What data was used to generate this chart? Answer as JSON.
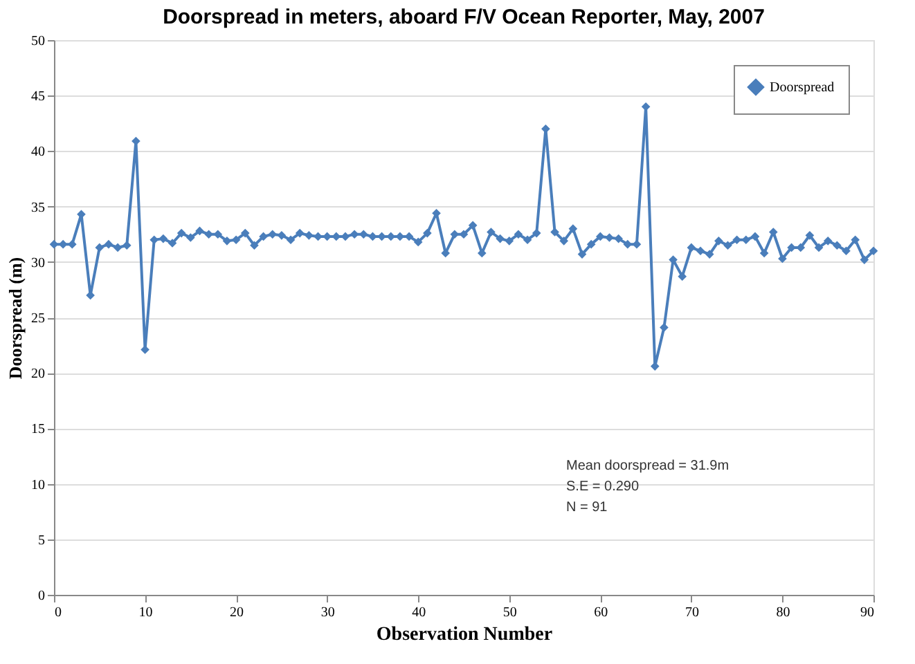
{
  "chart_data": {
    "type": "line",
    "title": "Doorspread in meters, aboard F/V Ocean Reporter, May, 2007",
    "xlabel": "Observation Number",
    "ylabel": "Doorspread (m)",
    "x": [
      0,
      1,
      2,
      3,
      4,
      5,
      6,
      7,
      8,
      9,
      10,
      11,
      12,
      13,
      14,
      15,
      16,
      17,
      18,
      19,
      20,
      21,
      22,
      23,
      24,
      25,
      26,
      27,
      28,
      29,
      30,
      31,
      32,
      33,
      34,
      35,
      36,
      37,
      38,
      39,
      40,
      41,
      42,
      43,
      44,
      45,
      46,
      47,
      48,
      49,
      50,
      51,
      52,
      53,
      54,
      55,
      56,
      57,
      58,
      59,
      60,
      61,
      62,
      63,
      64,
      65,
      66,
      67,
      68,
      69,
      70,
      71,
      72,
      73,
      74,
      75,
      76,
      77,
      78,
      79,
      80,
      81,
      82,
      83,
      84,
      85,
      86,
      87,
      88,
      89,
      90
    ],
    "series": [
      {
        "name": "Doorspread",
        "color": "#4a7ebb",
        "values": [
          31.6,
          31.6,
          31.6,
          34.3,
          27.0,
          31.3,
          31.6,
          31.3,
          31.5,
          40.9,
          22.1,
          32.0,
          32.1,
          31.7,
          32.6,
          32.2,
          32.8,
          32.5,
          32.5,
          31.9,
          32.0,
          32.6,
          31.5,
          32.3,
          32.5,
          32.4,
          32.0,
          32.6,
          32.4,
          32.3,
          32.3,
          32.3,
          32.3,
          32.5,
          32.5,
          32.3,
          32.3,
          32.3,
          32.3,
          32.3,
          31.8,
          32.6,
          34.4,
          30.8,
          32.5,
          32.5,
          33.3,
          30.8,
          32.7,
          32.1,
          31.9,
          32.5,
          32.0,
          32.6,
          42.0,
          32.7,
          31.9,
          33.0,
          30.7,
          31.6,
          32.3,
          32.2,
          32.1,
          31.6,
          31.6,
          44.0,
          20.6,
          24.1,
          30.2,
          28.7,
          31.3,
          31.0,
          30.7,
          31.9,
          31.5,
          32.0,
          32.0,
          32.3,
          30.8,
          32.7,
          30.3,
          31.3,
          31.3,
          32.4,
          31.3,
          31.9,
          31.5,
          31.0,
          32.0,
          30.2,
          31.0
        ]
      }
    ],
    "xlim": [
      0,
      90
    ],
    "xticks": [
      0,
      10,
      20,
      30,
      40,
      50,
      60,
      70,
      80,
      90
    ],
    "ylim": [
      0,
      50
    ],
    "yticks": [
      0,
      5,
      10,
      15,
      20,
      25,
      30,
      35,
      40,
      45,
      50
    ],
    "grid": "y",
    "legend": "top right",
    "marker": "diamond",
    "line_style": "solid",
    "annotations": [
      "Mean doorspread  =  31.9m",
      "S.E = 0.290",
      "N = 91"
    ]
  }
}
